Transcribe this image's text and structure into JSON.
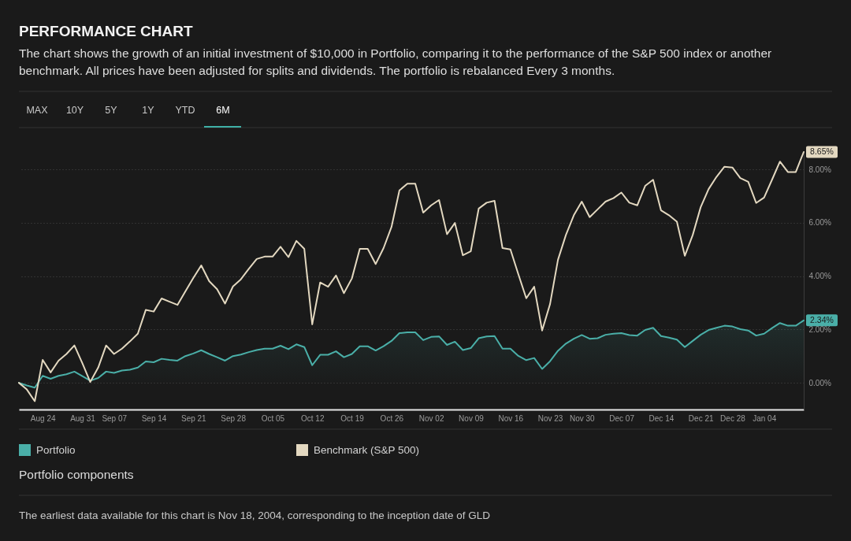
{
  "chart_data": {
    "type": "line",
    "title": "PERFORMANCE CHART",
    "subtitle": "The chart shows the growth of an initial investment of $10,000 in Portfolio, comparing it to the performance of the S&P 500 index or another benchmark. All prices have been adjusted for splits and dividends. The portfolio is rebalanced Every 3 months.",
    "categories": [
      null,
      null,
      null,
      "Aug 24",
      null,
      null,
      null,
      null,
      "Aug 31",
      null,
      null,
      null,
      "Sep 07",
      null,
      null,
      null,
      null,
      "Sep 14",
      null,
      null,
      null,
      null,
      "Sep 21",
      null,
      null,
      null,
      null,
      "Sep 28",
      null,
      null,
      null,
      null,
      "Oct 05",
      null,
      null,
      null,
      null,
      "Oct 12",
      null,
      null,
      null,
      null,
      "Oct 19",
      null,
      null,
      null,
      null,
      "Oct 26",
      null,
      null,
      null,
      null,
      "Nov 02",
      null,
      null,
      null,
      null,
      "Nov 09",
      null,
      null,
      null,
      null,
      "Nov 16",
      null,
      null,
      null,
      null,
      "Nov 23",
      null,
      null,
      null,
      "Nov 30",
      null,
      null,
      null,
      null,
      "Dec 07",
      null,
      null,
      null,
      null,
      "Dec 14",
      null,
      null,
      null,
      null,
      "Dec 21",
      null,
      null,
      null,
      "Dec 28",
      null,
      null,
      null,
      "Jan 04",
      null,
      null,
      null,
      null,
      null
    ],
    "series": [
      {
        "name": "Portfolio",
        "type": "area",
        "color": "#4aafa8",
        "values": [
          0.0,
          -0.1,
          -0.18,
          0.26,
          0.15,
          0.26,
          0.32,
          0.42,
          0.25,
          0.08,
          0.18,
          0.42,
          0.37,
          0.46,
          0.49,
          0.57,
          0.8,
          0.77,
          0.9,
          0.86,
          0.83,
          1.0,
          1.1,
          1.22,
          1.08,
          0.96,
          0.83,
          1.0,
          1.06,
          1.15,
          1.23,
          1.28,
          1.28,
          1.39,
          1.26,
          1.44,
          1.34,
          0.66,
          1.05,
          1.05,
          1.18,
          0.96,
          1.08,
          1.37,
          1.37,
          1.21,
          1.37,
          1.57,
          1.86,
          1.89,
          1.89,
          1.6,
          1.72,
          1.74,
          1.42,
          1.54,
          1.23,
          1.3,
          1.67,
          1.74,
          1.75,
          1.28,
          1.28,
          1.01,
          0.85,
          0.93,
          0.52,
          0.81,
          1.2,
          1.47,
          1.65,
          1.79,
          1.65,
          1.67,
          1.8,
          1.84,
          1.86,
          1.79,
          1.77,
          1.98,
          2.06,
          1.75,
          1.69,
          1.62,
          1.34,
          1.57,
          1.8,
          1.98,
          2.06,
          2.14,
          2.11,
          2.01,
          1.96,
          1.77,
          1.84,
          2.05,
          2.24,
          2.14,
          2.14,
          2.34
        ],
        "value_labels": [
          null,
          null,
          null,
          null,
          null,
          null,
          null,
          null,
          null,
          null,
          null,
          null,
          null,
          null,
          null,
          null,
          null,
          null,
          null,
          null,
          null,
          null,
          null,
          null,
          null,
          null,
          null,
          null,
          null,
          null,
          null,
          null,
          null,
          null,
          null,
          null,
          null,
          null,
          null,
          null,
          null,
          null,
          null,
          null,
          null,
          null,
          null,
          null,
          null,
          null,
          null,
          null,
          null,
          null,
          null,
          null,
          null,
          null,
          null,
          null,
          null,
          null,
          null,
          null,
          null,
          null,
          null,
          null,
          null,
          null,
          null,
          null,
          null,
          null,
          null,
          null,
          null,
          null,
          null,
          null,
          null,
          null,
          null,
          null,
          null,
          null,
          null,
          null,
          null,
          null,
          null,
          null,
          null,
          null,
          null,
          null,
          null,
          null,
          null,
          "2.34%"
        ]
      },
      {
        "name": "Benchmark (S&P 500)",
        "color": "#e3d8c0",
        "values": [
          0.0,
          -0.25,
          -0.69,
          0.86,
          0.39,
          0.83,
          1.08,
          1.4,
          0.74,
          0.03,
          0.57,
          1.4,
          1.08,
          1.28,
          1.55,
          1.84,
          2.73,
          2.67,
          3.16,
          3.04,
          2.92,
          3.43,
          3.93,
          4.4,
          3.81,
          3.51,
          2.97,
          3.61,
          3.88,
          4.27,
          4.64,
          4.73,
          4.73,
          5.1,
          4.71,
          5.32,
          5.02,
          2.19,
          3.76,
          3.6,
          4.02,
          3.36,
          3.91,
          5.02,
          5.02,
          4.45,
          5.05,
          5.84,
          7.21,
          7.46,
          7.46,
          6.38,
          6.65,
          6.85,
          5.57,
          5.99,
          4.78,
          4.93,
          6.53,
          6.75,
          6.82,
          5.05,
          5.0,
          4.07,
          3.17,
          3.6,
          1.96,
          2.95,
          4.61,
          5.54,
          6.28,
          6.79,
          6.21,
          6.5,
          6.79,
          6.92,
          7.13,
          6.75,
          6.65,
          7.38,
          7.61,
          6.46,
          6.28,
          6.04,
          4.76,
          5.54,
          6.58,
          7.26,
          7.72,
          8.1,
          8.07,
          7.67,
          7.53,
          6.74,
          6.94,
          7.61,
          8.29,
          7.9,
          7.9,
          8.65
        ],
        "value_labels": [
          null,
          null,
          null,
          null,
          null,
          null,
          null,
          null,
          null,
          null,
          null,
          null,
          null,
          null,
          null,
          null,
          null,
          null,
          null,
          null,
          null,
          null,
          null,
          null,
          null,
          null,
          null,
          null,
          null,
          null,
          null,
          null,
          null,
          null,
          null,
          null,
          null,
          null,
          null,
          null,
          null,
          null,
          null,
          null,
          null,
          null,
          null,
          null,
          null,
          null,
          null,
          null,
          null,
          null,
          null,
          null,
          null,
          null,
          null,
          null,
          null,
          null,
          null,
          null,
          null,
          null,
          null,
          null,
          null,
          null,
          null,
          null,
          null,
          null,
          null,
          null,
          null,
          null,
          null,
          null,
          null,
          null,
          null,
          null,
          null,
          null,
          null,
          null,
          null,
          null,
          null,
          null,
          null,
          null,
          null,
          null,
          null,
          null,
          null,
          "8.65%"
        ]
      }
    ],
    "ylim": [
      -1,
      8.65
    ],
    "yticks": [
      {
        "value": 0,
        "label": "0.00%"
      },
      {
        "value": 2,
        "label": "2.00%"
      },
      {
        "value": 4,
        "label": "4.00%"
      },
      {
        "value": 6,
        "label": "6.00%"
      },
      {
        "value": 8,
        "label": "8.00%"
      }
    ],
    "grid": "y",
    "legend": "bottom left",
    "annotations": [
      "MAX",
      "10Y",
      "5Y",
      "1Y",
      "YTD",
      "6M",
      "Portfolio components",
      "The earliest data available for this chart is Nov 18, 2004, corresponding to the inception date of GLD"
    ]
  }
}
